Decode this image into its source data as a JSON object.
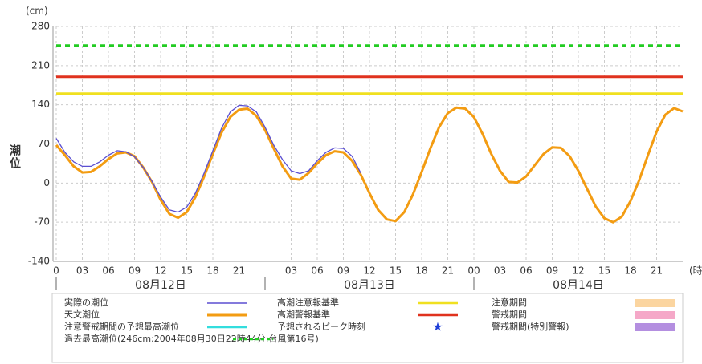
{
  "chart_data": {
    "type": "line",
    "y_unit": "(cm)",
    "ylabel": "潮位",
    "x_unit": "(時)",
    "ylim": [
      -140,
      280
    ],
    "yticks": [
      -140,
      -70,
      0,
      70,
      140,
      210,
      280
    ],
    "xlim": [
      0,
      72
    ],
    "xticks": [
      0,
      {
        "value": 3,
        "label": "03"
      },
      {
        "value": 6,
        "label": "06"
      },
      {
        "value": 9,
        "label": "09"
      },
      12,
      15,
      18,
      21,
      {
        "value": 27,
        "label": "03"
      },
      {
        "value": 30,
        "label": "06"
      },
      {
        "value": 33,
        "label": "09"
      },
      {
        "value": 36,
        "label": "12"
      },
      {
        "value": 39,
        "label": "15"
      },
      {
        "value": 42,
        "label": "18"
      },
      {
        "value": 45,
        "label": "21"
      },
      {
        "value": 48,
        "label": "00"
      },
      {
        "value": 51,
        "label": "03"
      },
      {
        "value": 54,
        "label": "06"
      },
      {
        "value": 57,
        "label": "09"
      },
      {
        "value": 60,
        "label": "12"
      },
      {
        "value": 63,
        "label": "15"
      },
      {
        "value": 66,
        "label": "18"
      },
      {
        "value": 69,
        "label": "21"
      }
    ],
    "days": [
      {
        "label": "08月12日",
        "start": 0,
        "end": 24
      },
      {
        "label": "08月13日",
        "start": 24,
        "end": 48
      },
      {
        "label": "08月14日",
        "start": 48,
        "end": 72
      }
    ],
    "grid": true,
    "x": [
      0,
      1,
      2,
      3,
      4,
      5,
      6,
      7,
      8,
      9,
      10,
      11,
      12,
      13,
      14,
      15,
      16,
      17,
      18,
      19,
      20,
      21,
      22,
      23,
      24,
      25,
      26,
      27,
      28,
      29,
      30,
      31,
      32,
      33,
      34,
      35,
      36,
      37,
      38,
      39,
      40,
      41,
      42,
      43,
      44,
      45,
      46,
      47,
      48,
      49,
      50,
      51,
      52,
      53,
      54,
      55,
      56,
      57,
      58,
      59,
      60,
      61,
      62,
      63,
      64,
      65,
      66,
      67,
      68,
      69,
      70,
      71,
      72
    ],
    "series": [
      {
        "name": "天文潮位",
        "color": "#f39c12",
        "width": 3,
        "values": [
          68,
          50,
          30,
          19,
          20,
          30,
          43,
          53,
          55,
          48,
          28,
          2,
          -30,
          -55,
          -62,
          -52,
          -25,
          12,
          52,
          90,
          118,
          131,
          133,
          120,
          95,
          62,
          30,
          8,
          6,
          18,
          35,
          50,
          57,
          55,
          40,
          15,
          -18,
          -48,
          -65,
          -68,
          -52,
          -20,
          20,
          62,
          100,
          125,
          135,
          133,
          118,
          88,
          52,
          22,
          2,
          1,
          12,
          32,
          52,
          64,
          63,
          48,
          22,
          -10,
          -42,
          -63,
          -70,
          -60,
          -32,
          5,
          50,
          92,
          122,
          134,
          128
        ]
      },
      {
        "name": "実際の潮位",
        "color": "#5b4fd1",
        "width": 1.3,
        "values": [
          80,
          55,
          38,
          30,
          30,
          38,
          50,
          58,
          56,
          47,
          28,
          3,
          -25,
          -48,
          -52,
          -43,
          -18,
          18,
          58,
          98,
          127,
          139,
          138,
          127,
          100,
          68,
          42,
          22,
          17,
          22,
          40,
          55,
          63,
          62,
          48,
          18,
          null,
          null,
          null,
          null,
          null,
          null,
          null,
          null,
          null,
          null,
          null,
          null,
          null,
          null,
          null,
          null,
          null,
          null,
          null,
          null,
          null,
          null,
          null,
          null,
          null,
          null,
          null,
          null,
          null,
          null,
          null,
          null,
          null,
          null,
          null,
          null,
          null
        ]
      }
    ],
    "reference_lines": [
      {
        "name": "過去最高潮位(246cm:2004年08月30日22時44分:台風第16号)",
        "value": 246,
        "color": "#22cc22",
        "dashed": true
      },
      {
        "name": "高潮警報基準",
        "value": 190,
        "color": "#e0321e",
        "dashed": false
      },
      {
        "name": "高潮注意報基準",
        "value": 160,
        "color": "#f0e020",
        "dashed": false
      }
    ],
    "legend_items": [
      {
        "name": "注意警戒期間の予想最高潮位",
        "color": "#33dddd",
        "kind": "line"
      },
      {
        "name": "予想されるピーク時刻",
        "color": "#1f3fd8",
        "kind": "star"
      },
      {
        "name": "注意期間",
        "color": "#fbd5a0",
        "kind": "box"
      },
      {
        "name": "警戒期間",
        "color": "#f5a8c8",
        "kind": "box"
      },
      {
        "name": "警戒期間(特別警報)",
        "color": "#b48fe0",
        "kind": "box"
      }
    ]
  }
}
